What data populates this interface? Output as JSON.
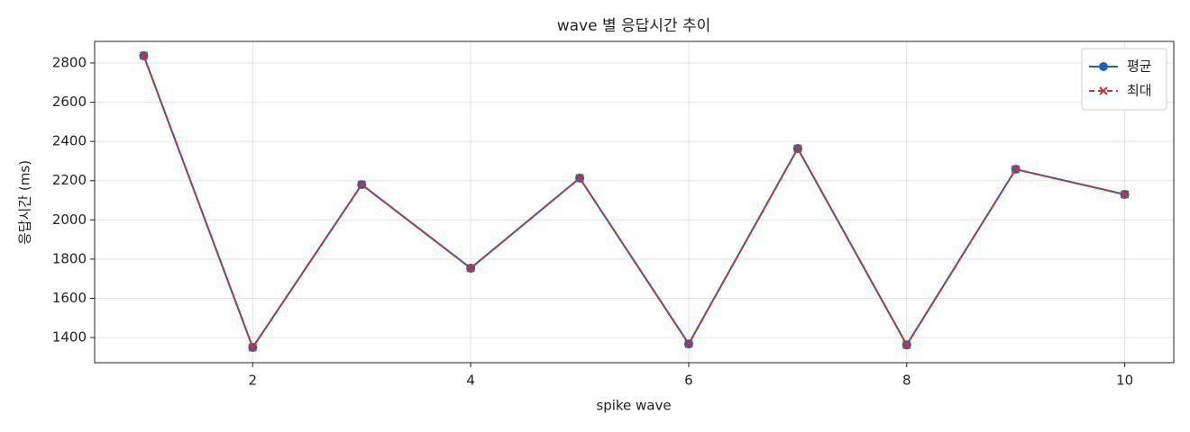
{
  "chart_data": {
    "type": "line",
    "title": "wave 별 응답시간 추이",
    "x_label": "spike wave",
    "y_label": "응답시간 (ms)",
    "x": [
      1,
      2,
      3,
      4,
      5,
      6,
      7,
      8,
      9,
      10
    ],
    "series": [
      {
        "name": "평균",
        "color": "#1f5fbf",
        "marker": "circle",
        "linestyle": "solid",
        "values": [
          2837,
          1350,
          2180,
          1754,
          2213,
          1368,
          2364,
          1363,
          2258,
          2130
        ]
      },
      {
        "name": "최대",
        "color": "#cc3333",
        "marker": "x",
        "linestyle": "dashed",
        "values": [
          2837,
          1350,
          2180,
          1754,
          2213,
          1368,
          2364,
          1363,
          2258,
          2130
        ]
      }
    ],
    "xlim": [
      0.55,
      10.45
    ],
    "xticks": [
      2,
      4,
      6,
      8,
      10
    ],
    "ylim": [
      1272,
      2910
    ],
    "yticks": [
      1400,
      1600,
      1800,
      2000,
      2200,
      2400,
      2600,
      2800
    ],
    "grid": true,
    "legend": "upper right"
  }
}
